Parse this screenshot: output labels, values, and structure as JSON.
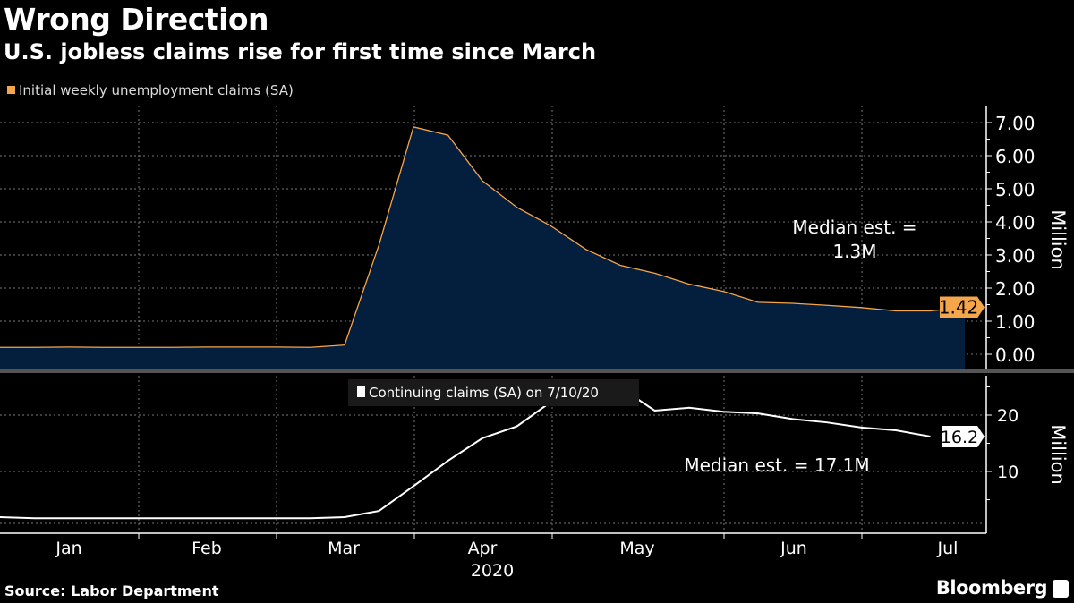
{
  "title": "Wrong Direction",
  "subtitle": "U.S. jobless claims rise for first time since March",
  "source": "Source: Labor Department",
  "brand": "Bloomberg",
  "colors": {
    "initial_line": "#f5a54a",
    "initial_fill": "#031f3d",
    "continuing_line": "#ffffff",
    "grid": "#777777"
  },
  "chart_data": [
    {
      "type": "area",
      "legend": "Initial weekly unemployment claims (SA)",
      "ylabel": "Million",
      "ylim": [
        -0.5,
        7.5
      ],
      "yticks": [
        "0.00",
        "1.00",
        "2.00",
        "3.00",
        "4.00",
        "5.00",
        "6.00",
        "7.00"
      ],
      "last_value_label": "1.42",
      "annotation": [
        "Median est. =",
        "1.3M"
      ],
      "values": [
        0.21,
        0.21,
        0.22,
        0.21,
        0.21,
        0.21,
        0.22,
        0.22,
        0.22,
        0.21,
        0.28,
        3.31,
        6.87,
        6.62,
        5.24,
        4.44,
        3.87,
        3.17,
        2.69,
        2.45,
        2.12,
        1.9,
        1.57,
        1.54,
        1.48,
        1.41,
        1.31,
        1.31,
        1.42
      ]
    },
    {
      "type": "line",
      "legend": "Continuing claims (SA) on 7/10/20",
      "ylabel": "Million",
      "ylim": [
        0,
        27
      ],
      "yticks": [
        "10",
        "20"
      ],
      "last_value_label": "16.2",
      "annotation": [
        "Median est. = 17.1M"
      ],
      "values": [
        1.9,
        1.7,
        1.7,
        1.7,
        1.7,
        1.7,
        1.7,
        1.7,
        1.7,
        1.7,
        1.9,
        3.0,
        7.4,
        11.9,
        15.9,
        18.0,
        22.4,
        22.5,
        24.9,
        20.8,
        21.3,
        20.6,
        20.3,
        19.3,
        18.7,
        17.8,
        17.3,
        16.2
      ]
    }
  ],
  "x_axis": {
    "months": [
      "Jan",
      "Feb",
      "Mar",
      "Apr",
      "May",
      "Jun",
      "Jul"
    ],
    "year": "2020"
  }
}
